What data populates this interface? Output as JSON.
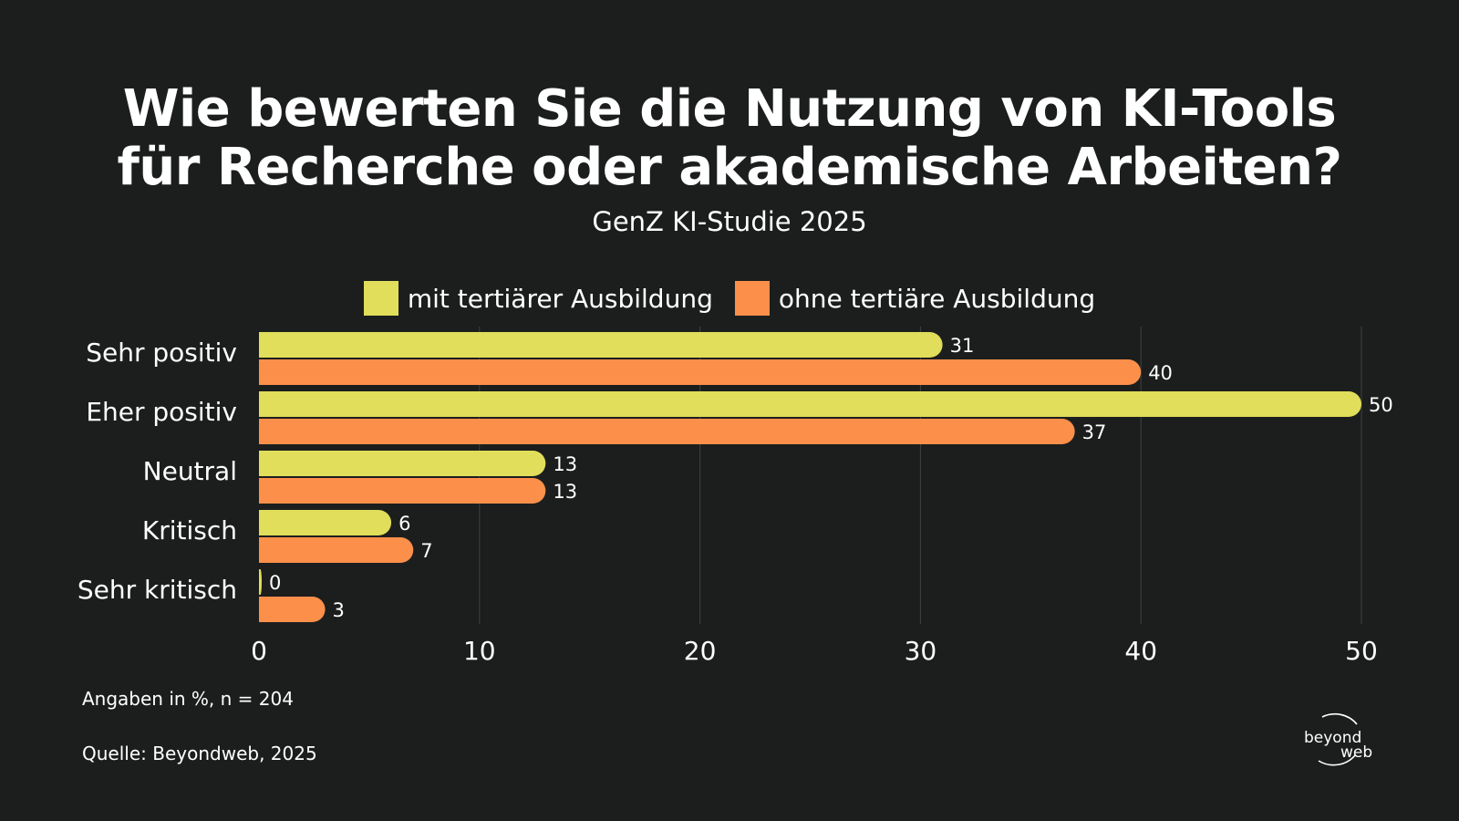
{
  "header": {
    "title_line1": "Wie bewerten Sie die Nutzung von KI-Tools",
    "title_line2": "für Recherche oder akademische Arbeiten?",
    "subtitle": "GenZ KI-Studie 2025"
  },
  "colors": {
    "background": "#1c1e1e",
    "series1": "#e0de5a",
    "series2": "#fc904a",
    "grid": "#3f4242"
  },
  "chart_data": {
    "type": "bar",
    "orientation": "horizontal",
    "categories": [
      "Sehr positiv",
      "Eher positiv",
      "Neutral",
      "Kritisch",
      "Sehr kritisch"
    ],
    "series": [
      {
        "name": "mit tertiärer Ausbildung",
        "values": [
          31,
          50,
          13,
          6,
          0
        ]
      },
      {
        "name": "ohne tertiäre Ausbildung",
        "values": [
          40,
          37,
          13,
          7,
          3
        ]
      }
    ],
    "xlim": [
      0,
      50
    ],
    "xticks": [
      0,
      10,
      20,
      30,
      40,
      50
    ],
    "grid": "vertical",
    "legend": "top-center",
    "data_labels": true
  },
  "footer": {
    "note": "Angaben in %, n = 204",
    "source": "Quelle: Beyondweb, 2025",
    "logo_line1": "beyond",
    "logo_line2": "web"
  }
}
